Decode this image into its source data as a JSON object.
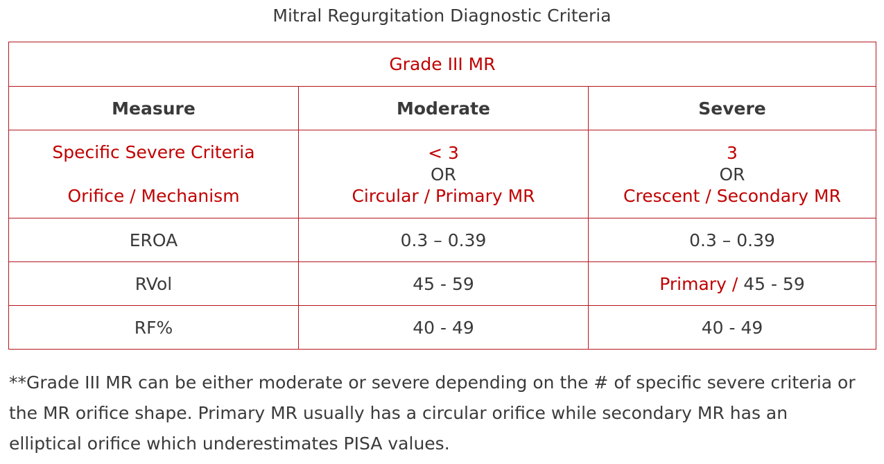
{
  "title": "Mitral Regurgitation Diagnostic Criteria",
  "table": {
    "grade": "Grade III MR",
    "headers": [
      "Measure",
      "Moderate",
      "Severe"
    ],
    "criteria": {
      "measure_line1": "Specific Severe Criteria",
      "measure_line2": "Orifice / Mechanism",
      "moderate_line1": "< 3",
      "moderate_or": "OR",
      "moderate_line2": "Circular / Primary MR",
      "severe_line1": "3",
      "severe_or": "OR",
      "severe_line2": "Crescent / Secondary MR"
    },
    "rows": [
      {
        "measure": "EROA",
        "moderate": "0.3 – 0.39",
        "severe_prefix": "",
        "severe": "0.3 – 0.39"
      },
      {
        "measure": "RVol",
        "moderate": "45 - 59",
        "severe_prefix": "Primary / ",
        "severe": "45 - 59"
      },
      {
        "measure": "RF%",
        "moderate": "40 - 49",
        "severe_prefix": "",
        "severe": "40 - 49"
      }
    ]
  },
  "footnote": {
    "line1": "**Grade III MR can be either moderate or severe depending on the # of specific severe criteria or",
    "line2": "the MR orifice shape.  Primary MR usually has a circular orifice while secondary MR has an",
    "line3": "elliptical orifice which underestimates PISA values."
  },
  "colors": {
    "accent_red": "#c00000",
    "border_red": "#b5151d",
    "text_gray": "#3a3a3a"
  }
}
